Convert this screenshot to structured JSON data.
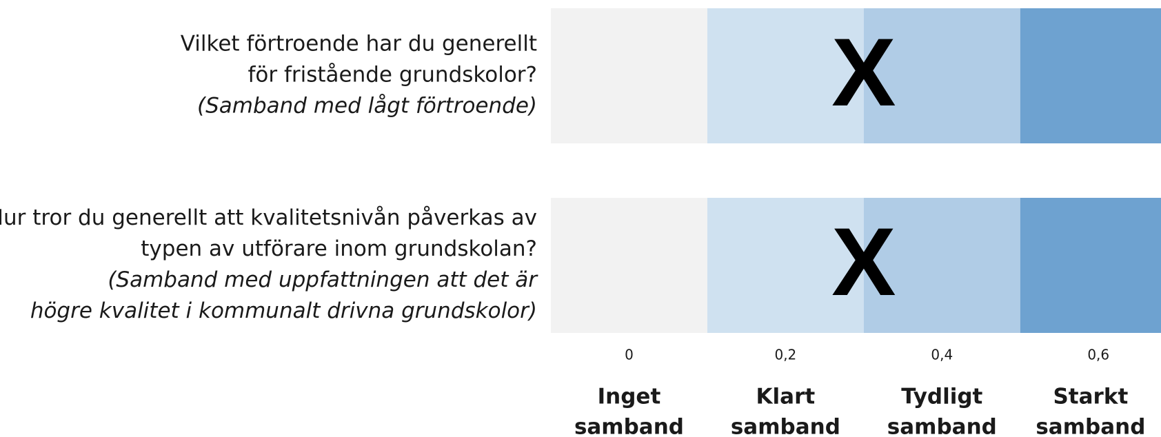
{
  "chart_data": {
    "type": "band-scale",
    "xlim": [
      -0.1,
      0.68
    ],
    "xticks": [
      0,
      {
        "value": 0.2,
        "label": "0,2"
      },
      {
        "value": 0.4,
        "label": "0,4"
      },
      {
        "value": 0.6,
        "label": "0,6"
      }
    ],
    "bands": [
      {
        "label": [
          "Inget",
          "samband"
        ],
        "from": -0.1,
        "to": 0.1,
        "color": "#f2f2f2"
      },
      {
        "label": [
          "Klart",
          "samband"
        ],
        "from": 0.1,
        "to": 0.3,
        "color": "#cfe1f0"
      },
      {
        "label": [
          "Tydligt",
          "samband"
        ],
        "from": 0.3,
        "to": 0.5,
        "color": "#b0cce6"
      },
      {
        "label": [
          "Starkt",
          "samband"
        ],
        "from": 0.5,
        "to": 0.68,
        "color": "#6ea2d0"
      }
    ],
    "marker": "X",
    "rows": [
      {
        "question": [
          "Vilket förtroende har du generellt",
          "för fristående grundskolor?"
        ],
        "note": [
          "(Samband med lågt förtroende)"
        ],
        "value": 0.3
      },
      {
        "question": [
          "Hur tror du generellt att kvalitetsnivån påverkas av",
          "typen av utförare inom grundskolan?"
        ],
        "note": [
          "(Samband med uppfattningen att det är",
          "högre kvalitet i kommunalt drivna grundskolor)"
        ],
        "value": 0.3
      }
    ]
  }
}
